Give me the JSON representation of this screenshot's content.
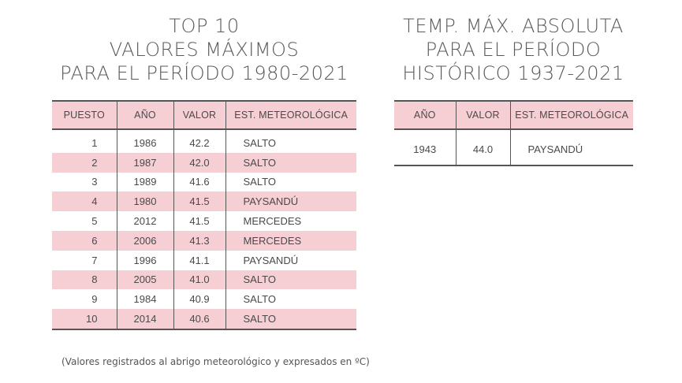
{
  "left_title": {
    "line1": "TOP 10",
    "line2": "VALORES MÁXIMOS",
    "line3": "PARA EL PERÍODO 1980-2021"
  },
  "right_title": {
    "line1": "TEMP. MÁX. ABSOLUTA",
    "line2": "PARA EL PERÍODO",
    "line3": "HISTÓRICO 1937-2021"
  },
  "top10": {
    "headers": [
      "PUESTO",
      "AÑO",
      "VALOR",
      "EST. METEOROLÓGICA"
    ],
    "rows": [
      [
        "1",
        "1986",
        "42.2",
        "SALTO"
      ],
      [
        "2",
        "1987",
        "42.0",
        "SALTO"
      ],
      [
        "3",
        "1989",
        "41.6",
        "SALTO"
      ],
      [
        "4",
        "1980",
        "41.5",
        "PAYSANDÚ"
      ],
      [
        "5",
        "2012",
        "41.5",
        "MERCEDES"
      ],
      [
        "6",
        "2006",
        "41.3",
        "MERCEDES"
      ],
      [
        "7",
        "1996",
        "41.1",
        "PAYSANDÚ"
      ],
      [
        "8",
        "2005",
        "41.0",
        "SALTO"
      ],
      [
        "9",
        "1984",
        "40.9",
        "SALTO"
      ],
      [
        "10",
        "2014",
        "40.6",
        "SALTO"
      ]
    ]
  },
  "historic": {
    "headers": [
      "AÑO",
      "VALOR",
      "EST. METEOROLÓGICA"
    ],
    "rows": [
      [
        "1943",
        "44.0",
        "PAYSANDÚ"
      ]
    ]
  },
  "footnote": "(Valores registrados al abrigo meteorológico y expresados en ºC)",
  "colors": {
    "header_bg": "#f6cfd4",
    "alt_row_bg": "#f6cfd4",
    "rule": "#555555"
  }
}
